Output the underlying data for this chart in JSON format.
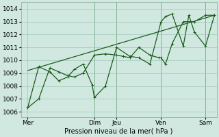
{
  "bg_color": "#d0e8e0",
  "grid_color": "#a0c8b8",
  "line_color": "#1a5c1a",
  "vline_color": "#2a6a2a",
  "ylabel_values": [
    1006,
    1007,
    1008,
    1009,
    1010,
    1011,
    1012,
    1013,
    1014
  ],
  "x_tick_labels": [
    "Mer",
    "",
    "Dim",
    "Jeu",
    "",
    "Ven",
    "",
    "Sam"
  ],
  "x_tick_positions": [
    0,
    2,
    3,
    4,
    5,
    6,
    7,
    8
  ],
  "xlabel": "Pression niveau de la mer( hPa )",
  "ylim": [
    1005.6,
    1014.5
  ],
  "xlim": [
    -0.3,
    8.5
  ],
  "trend_x": [
    0,
    8.4
  ],
  "trend_y": [
    1009.2,
    1013.5
  ],
  "line1_x": [
    0,
    0.5,
    1.0,
    1.4,
    1.8,
    2.1,
    2.5,
    3.0,
    3.5,
    4.0,
    4.3,
    4.6,
    5.0,
    5.5,
    5.9,
    6.0,
    6.2,
    6.5,
    7.0,
    7.5,
    8.0,
    8.4
  ],
  "line1_y": [
    1006.3,
    1007.0,
    1009.4,
    1009.1,
    1008.8,
    1008.7,
    1009.0,
    1010.4,
    1010.5,
    1010.4,
    1010.3,
    1010.2,
    1011.0,
    1010.4,
    1010.2,
    1010.2,
    1009.7,
    1011.3,
    1013.0,
    1013.0,
    1013.5,
    1013.5
  ],
  "line2_x": [
    0,
    0.5,
    1.0,
    1.4,
    1.8,
    2.1,
    2.5,
    2.9,
    3.0,
    3.5,
    4.0,
    4.6,
    5.0,
    5.5,
    6.0,
    6.2,
    6.5,
    7.0,
    7.25,
    7.5,
    8.0,
    8.4
  ],
  "line2_y": [
    1006.3,
    1009.5,
    1009.1,
    1008.4,
    1008.7,
    1009.3,
    1009.7,
    1008.1,
    1007.1,
    1008.0,
    1011.0,
    1010.3,
    1010.2,
    1009.7,
    1013.0,
    1013.4,
    1013.6,
    1011.1,
    1013.5,
    1012.2,
    1011.1,
    1013.5
  ],
  "vline_positions": [
    3.0,
    4.0,
    6.0,
    8.0
  ],
  "lw": 0.9,
  "ms": 2.5
}
